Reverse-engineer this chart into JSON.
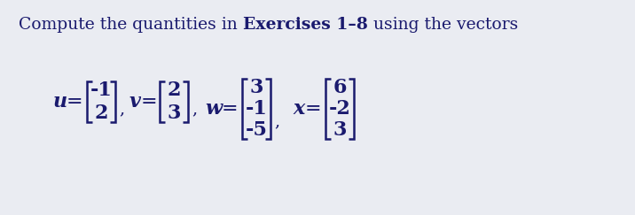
{
  "background_color": "#eaecf2",
  "text_color": "#1a1a6e",
  "title_normal1": "Compute the quantities in ",
  "title_bold": "Exercises 1–8",
  "title_normal2": " using the vectors",
  "title_fontsize": 13.5,
  "vec_fontsize": 16,
  "label_fontsize": 16,
  "u_vec": [
    "-1",
    "2"
  ],
  "v_vec": [
    "2",
    "3"
  ],
  "w_vec": [
    "3",
    "-1",
    "-5"
  ],
  "x_vec": [
    "6",
    "-2",
    "3"
  ],
  "fig_width": 7.16,
  "fig_height": 2.43,
  "dpi": 100
}
